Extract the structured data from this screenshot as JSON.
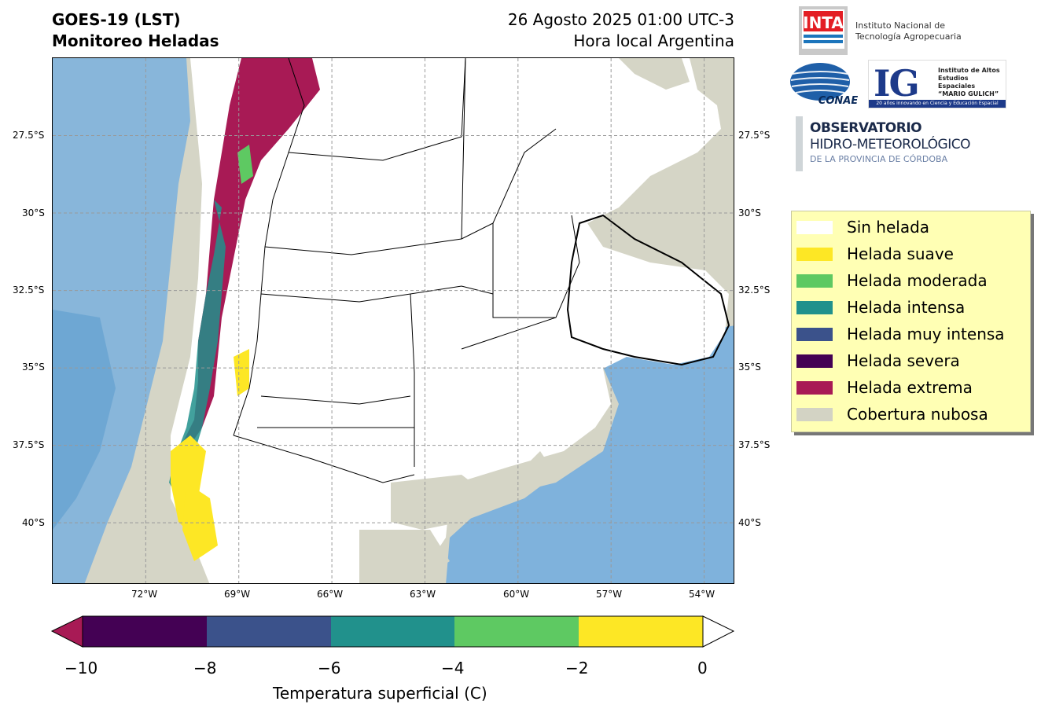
{
  "header": {
    "title_line1": "GOES-19 (LST)",
    "title_line2": "Monitoreo Heladas",
    "date_line": "26 Agosto 2025 01:00 UTC-3",
    "local_line": "Hora local Argentina"
  },
  "map": {
    "lat_labels": [
      "27.5°S",
      "30°S",
      "32.5°S",
      "35°S",
      "37.5°S",
      "40°S"
    ],
    "lon_labels": [
      "72°W",
      "69°W",
      "66°W",
      "63°W",
      "60°W",
      "57°W",
      "54°W"
    ],
    "lon_range": [
      -75,
      -53
    ],
    "lat_range": [
      -42,
      -25
    ],
    "grid": true
  },
  "colorbar": {
    "ticks": [
      "−10",
      "−8",
      "−6",
      "−4",
      "−2",
      "0"
    ],
    "label": "Temperatura superficial (C)",
    "colors": [
      "#a81a55",
      "#440154",
      "#3b528b",
      "#21918c",
      "#5ec962",
      "#fde725",
      "#ffffff"
    ]
  },
  "legend": {
    "items": [
      {
        "label": "Sin helada",
        "color": "#ffffff"
      },
      {
        "label": "Helada suave",
        "color": "#fde725"
      },
      {
        "label": "Helada moderada",
        "color": "#5ec962"
      },
      {
        "label": "Helada intensa",
        "color": "#21918c"
      },
      {
        "label": "Helada muy intensa",
        "color": "#3b528b"
      },
      {
        "label": "Helada severa",
        "color": "#440154"
      },
      {
        "label": "Helada extrema",
        "color": "#a81a55"
      },
      {
        "label": "Cobertura nubosa",
        "color": "#d3d3c4"
      }
    ]
  },
  "logos": {
    "inta_mark": "INTA",
    "inta_name_1": "Instituto Nacional de",
    "inta_name_2": "Tecnología Agropecuaria",
    "conae_mark": "CONAE",
    "ig_mark": "IG",
    "ig_name_1": "Instituto de Altos",
    "ig_name_2": "Estudios Espaciales",
    "ig_name_3": "“MARIO GULICH”",
    "ig_tagline": "20 años innovando en Ciencia y Educación Espacial",
    "obs_line1": "OBSERVATORIO",
    "obs_line2": "HIDRO-METEOROLÓGICO",
    "obs_line3": "DE LA PROVINCIA DE CÓRDOBA"
  }
}
